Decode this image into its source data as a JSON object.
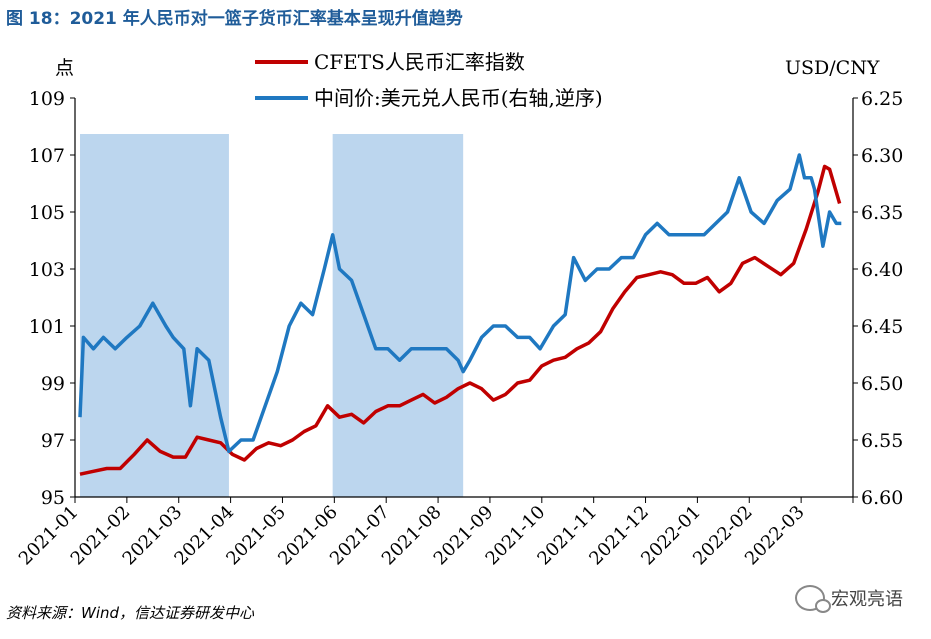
{
  "title": "图 18：2021 年人民币对一篮子货币汇率基本呈现升值趋势",
  "source": "资料来源：Wind，信达证券研发中心",
  "watermark": "宏观亮语",
  "chart_data": {
    "type": "line",
    "left_axis_label": "点",
    "right_axis_label": "USD/CNY",
    "left_ylim": [
      95,
      109
    ],
    "left_ticks": [
      "95",
      "97",
      "99",
      "101",
      "103",
      "105",
      "107",
      "109"
    ],
    "right_ylim": [
      6.25,
      6.6
    ],
    "right_ticks": [
      "6.25",
      "6.30",
      "6.35",
      "6.40",
      "6.45",
      "6.50",
      "6.55",
      "6.60"
    ],
    "right_axis_reversed": true,
    "x_categories": [
      "2021-01",
      "2021-02",
      "2021-03",
      "2021-04",
      "2021-05",
      "2021-06",
      "2021-07",
      "2021-08",
      "2021-09",
      "2021-10",
      "2021-11",
      "2021-12",
      "2022-01",
      "2022-02",
      "2022-03"
    ],
    "shaded_ranges": [
      [
        "2021-01-04",
        "2021-03-31"
      ],
      [
        "2021-05-31",
        "2021-08-16"
      ]
    ],
    "series": [
      {
        "name": "CFETS人民币汇率指数",
        "axis": "left",
        "color": "#c00000",
        "points": [
          [
            "2021-01-04",
            95.8
          ],
          [
            "2021-01-12",
            95.9
          ],
          [
            "2021-01-20",
            96.0
          ],
          [
            "2021-01-28",
            96.0
          ],
          [
            "2021-02-05",
            96.5
          ],
          [
            "2021-02-12",
            97.0
          ],
          [
            "2021-02-19",
            96.6
          ],
          [
            "2021-02-26",
            96.4
          ],
          [
            "2021-03-05",
            96.4
          ],
          [
            "2021-03-12",
            97.1
          ],
          [
            "2021-03-19",
            97.0
          ],
          [
            "2021-03-26",
            96.9
          ],
          [
            "2021-04-02",
            96.5
          ],
          [
            "2021-04-09",
            96.3
          ],
          [
            "2021-04-16",
            96.7
          ],
          [
            "2021-04-23",
            96.9
          ],
          [
            "2021-04-30",
            96.8
          ],
          [
            "2021-05-07",
            97.0
          ],
          [
            "2021-05-14",
            97.3
          ],
          [
            "2021-05-21",
            97.5
          ],
          [
            "2021-05-28",
            98.2
          ],
          [
            "2021-06-04",
            97.8
          ],
          [
            "2021-06-11",
            97.9
          ],
          [
            "2021-06-18",
            97.6
          ],
          [
            "2021-06-25",
            98.0
          ],
          [
            "2021-07-02",
            98.2
          ],
          [
            "2021-07-09",
            98.2
          ],
          [
            "2021-07-16",
            98.4
          ],
          [
            "2021-07-23",
            98.6
          ],
          [
            "2021-07-30",
            98.3
          ],
          [
            "2021-08-06",
            98.5
          ],
          [
            "2021-08-13",
            98.8
          ],
          [
            "2021-08-20",
            99.0
          ],
          [
            "2021-08-27",
            98.8
          ],
          [
            "2021-09-03",
            98.4
          ],
          [
            "2021-09-10",
            98.6
          ],
          [
            "2021-09-17",
            99.0
          ],
          [
            "2021-09-24",
            99.1
          ],
          [
            "2021-10-01",
            99.6
          ],
          [
            "2021-10-08",
            99.8
          ],
          [
            "2021-10-15",
            99.9
          ],
          [
            "2021-10-22",
            100.2
          ],
          [
            "2021-10-29",
            100.4
          ],
          [
            "2021-11-05",
            100.8
          ],
          [
            "2021-11-12",
            101.6
          ],
          [
            "2021-11-19",
            102.2
          ],
          [
            "2021-11-26",
            102.7
          ],
          [
            "2021-12-03",
            102.8
          ],
          [
            "2021-12-10",
            102.9
          ],
          [
            "2021-12-17",
            102.8
          ],
          [
            "2021-12-24",
            102.5
          ],
          [
            "2021-12-31",
            102.5
          ],
          [
            "2022-01-07",
            102.7
          ],
          [
            "2022-01-14",
            102.2
          ],
          [
            "2022-01-21",
            102.5
          ],
          [
            "2022-01-28",
            103.2
          ],
          [
            "2022-02-04",
            103.4
          ],
          [
            "2022-02-11",
            103.1
          ],
          [
            "2022-02-18",
            102.8
          ],
          [
            "2022-02-25",
            103.2
          ],
          [
            "2022-03-04",
            104.4
          ],
          [
            "2022-03-11",
            105.7
          ],
          [
            "2022-03-15",
            106.6
          ],
          [
            "2022-03-18",
            106.5
          ],
          [
            "2022-03-24",
            105.3
          ]
        ]
      },
      {
        "name": "中间价:美元兑人民币(右轴,逆序)",
        "axis": "right",
        "color": "#1f78c1",
        "points": [
          [
            "2021-01-04",
            6.53
          ],
          [
            "2021-01-06",
            6.46
          ],
          [
            "2021-01-12",
            6.47
          ],
          [
            "2021-01-18",
            6.46
          ],
          [
            "2021-01-25",
            6.47
          ],
          [
            "2021-02-01",
            6.46
          ],
          [
            "2021-02-08",
            6.45
          ],
          [
            "2021-02-15",
            6.43
          ],
          [
            "2021-02-22",
            6.45
          ],
          [
            "2021-02-26",
            6.46
          ],
          [
            "2021-03-04",
            6.47
          ],
          [
            "2021-03-08",
            6.52
          ],
          [
            "2021-03-12",
            6.47
          ],
          [
            "2021-03-19",
            6.48
          ],
          [
            "2021-03-26",
            6.53
          ],
          [
            "2021-03-31",
            6.56
          ],
          [
            "2021-04-07",
            6.55
          ],
          [
            "2021-04-14",
            6.55
          ],
          [
            "2021-04-21",
            6.52
          ],
          [
            "2021-04-28",
            6.49
          ],
          [
            "2021-05-05",
            6.45
          ],
          [
            "2021-05-12",
            6.43
          ],
          [
            "2021-05-19",
            6.44
          ],
          [
            "2021-05-26",
            6.4
          ],
          [
            "2021-05-31",
            6.37
          ],
          [
            "2021-06-04",
            6.4
          ],
          [
            "2021-06-11",
            6.41
          ],
          [
            "2021-06-18",
            6.44
          ],
          [
            "2021-06-25",
            6.47
          ],
          [
            "2021-07-02",
            6.47
          ],
          [
            "2021-07-09",
            6.48
          ],
          [
            "2021-07-16",
            6.47
          ],
          [
            "2021-07-23",
            6.47
          ],
          [
            "2021-07-30",
            6.47
          ],
          [
            "2021-08-06",
            6.47
          ],
          [
            "2021-08-13",
            6.48
          ],
          [
            "2021-08-16",
            6.49
          ],
          [
            "2021-08-20",
            6.48
          ],
          [
            "2021-08-27",
            6.46
          ],
          [
            "2021-09-03",
            6.45
          ],
          [
            "2021-09-10",
            6.45
          ],
          [
            "2021-09-17",
            6.46
          ],
          [
            "2021-09-24",
            6.46
          ],
          [
            "2021-09-30",
            6.47
          ],
          [
            "2021-10-08",
            6.45
          ],
          [
            "2021-10-15",
            6.44
          ],
          [
            "2021-10-20",
            6.39
          ],
          [
            "2021-10-27",
            6.41
          ],
          [
            "2021-11-03",
            6.4
          ],
          [
            "2021-11-10",
            6.4
          ],
          [
            "2021-11-17",
            6.39
          ],
          [
            "2021-11-24",
            6.39
          ],
          [
            "2021-12-01",
            6.37
          ],
          [
            "2021-12-08",
            6.36
          ],
          [
            "2021-12-15",
            6.37
          ],
          [
            "2021-12-22",
            6.37
          ],
          [
            "2021-12-29",
            6.37
          ],
          [
            "2022-01-05",
            6.37
          ],
          [
            "2022-01-12",
            6.36
          ],
          [
            "2022-01-19",
            6.35
          ],
          [
            "2022-01-26",
            6.32
          ],
          [
            "2022-02-02",
            6.35
          ],
          [
            "2022-02-09",
            6.36
          ],
          [
            "2022-02-16",
            6.34
          ],
          [
            "2022-02-23",
            6.33
          ],
          [
            "2022-02-28",
            6.3
          ],
          [
            "2022-03-03",
            6.32
          ],
          [
            "2022-03-07",
            6.32
          ],
          [
            "2022-03-09",
            6.33
          ],
          [
            "2022-03-14",
            6.38
          ],
          [
            "2022-03-18",
            6.35
          ],
          [
            "2022-03-22",
            6.36
          ],
          [
            "2022-03-25",
            6.36
          ]
        ]
      }
    ]
  }
}
